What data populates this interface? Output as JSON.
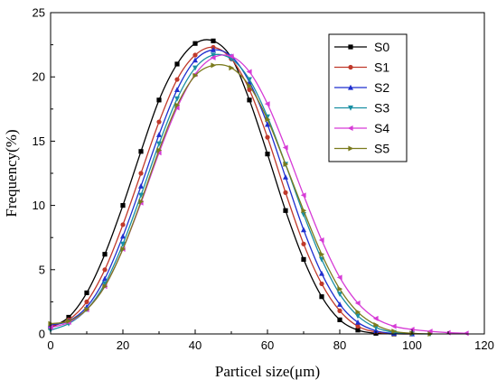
{
  "chart_data": {
    "type": "line",
    "title": "",
    "xlabel": "Particel size(μm)",
    "ylabel": "Frequency(%)",
    "xlim": [
      0,
      120
    ],
    "ylim": [
      0,
      25
    ],
    "x_ticks": [
      0,
      20,
      40,
      60,
      80,
      100,
      120
    ],
    "y_ticks": [
      0,
      5,
      10,
      15,
      20,
      25
    ],
    "grid": false,
    "legend_position": "top-right",
    "series": [
      {
        "name": "S0",
        "color": "#000000",
        "marker": "square",
        "x": [
          0,
          5,
          10,
          15,
          20,
          25,
          30,
          35,
          40,
          45,
          50,
          55,
          60,
          65,
          70,
          75,
          80,
          85,
          90,
          95
        ],
        "y": [
          0.5,
          1.3,
          3.2,
          6.2,
          10.0,
          14.2,
          18.2,
          21.0,
          22.6,
          22.8,
          21.5,
          18.2,
          14.0,
          9.6,
          5.8,
          2.9,
          1.1,
          0.3,
          0.05,
          0
        ]
      },
      {
        "name": "S1",
        "color": "#c0392b",
        "marker": "circle",
        "x": [
          0,
          5,
          10,
          15,
          20,
          25,
          30,
          35,
          40,
          45,
          50,
          55,
          60,
          65,
          70,
          75,
          80,
          85,
          90,
          95,
          100
        ],
        "y": [
          0.6,
          1.1,
          2.5,
          5.0,
          8.5,
          12.5,
          16.5,
          19.8,
          21.7,
          22.3,
          21.4,
          19.0,
          15.3,
          11.0,
          7.0,
          3.9,
          1.8,
          0.6,
          0.15,
          0.02,
          0
        ]
      },
      {
        "name": "S2",
        "color": "#1f2fcf",
        "marker": "triangle-up",
        "x": [
          0,
          5,
          10,
          15,
          20,
          25,
          30,
          35,
          40,
          45,
          50,
          55,
          60,
          65,
          70,
          75,
          80,
          85,
          90,
          95,
          100
        ],
        "y": [
          0.7,
          1.0,
          2.1,
          4.3,
          7.6,
          11.5,
          15.5,
          19.0,
          21.3,
          22.1,
          21.6,
          19.6,
          16.3,
          12.2,
          8.1,
          4.7,
          2.3,
          0.9,
          0.25,
          0.04,
          0
        ]
      },
      {
        "name": "S3",
        "color": "#1a8fa3",
        "marker": "triangle-down",
        "x": [
          0,
          5,
          10,
          15,
          20,
          25,
          30,
          35,
          40,
          45,
          50,
          55,
          60,
          65,
          70,
          75,
          80,
          85,
          90,
          95,
          100,
          105
        ],
        "y": [
          0.3,
          0.8,
          1.9,
          3.9,
          7.0,
          10.8,
          14.8,
          18.3,
          20.7,
          21.7,
          21.4,
          19.8,
          16.9,
          13.2,
          9.3,
          5.8,
          3.1,
          1.4,
          0.5,
          0.12,
          0.02,
          0
        ]
      },
      {
        "name": "S4",
        "color": "#d63ad6",
        "marker": "triangle-left",
        "x": [
          0,
          5,
          10,
          15,
          20,
          25,
          30,
          35,
          40,
          45,
          50,
          55,
          60,
          65,
          70,
          75,
          80,
          85,
          90,
          95,
          100,
          105,
          110,
          115
        ],
        "y": [
          0.5,
          0.9,
          1.9,
          3.7,
          6.6,
          10.2,
          14.1,
          17.6,
          20.2,
          21.5,
          21.6,
          20.4,
          17.9,
          14.5,
          10.8,
          7.3,
          4.4,
          2.4,
          1.2,
          0.6,
          0.35,
          0.2,
          0.1,
          0.05
        ]
      },
      {
        "name": "S5",
        "color": "#7a7a1c",
        "marker": "triangle-right",
        "x": [
          0,
          5,
          10,
          15,
          20,
          25,
          30,
          35,
          40,
          45,
          50,
          55,
          60,
          65,
          70,
          75,
          80,
          85,
          90,
          95,
          100,
          105
        ],
        "y": [
          0.8,
          1.0,
          1.9,
          3.7,
          6.6,
          10.3,
          14.3,
          17.8,
          20.1,
          20.9,
          20.7,
          19.3,
          16.7,
          13.2,
          9.6,
          6.2,
          3.5,
          1.7,
          0.7,
          0.2,
          0.05,
          0
        ]
      }
    ]
  }
}
